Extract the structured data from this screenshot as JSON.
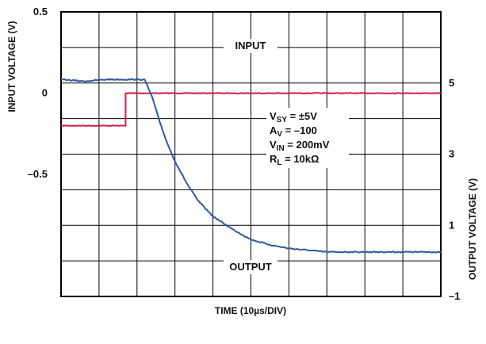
{
  "chart_data": {
    "type": "line",
    "xlabel": "TIME (10µs/DIV)",
    "ylabel_left": "INPUT VOLTAGE (V)",
    "ylabel_right": "OUTPUT VOLTAGE (V)",
    "x_divisions": 10,
    "grid": true,
    "ylim_left": [
      -1.25,
      0.5
    ],
    "ylim_right": [
      -1,
      7
    ],
    "yticks_left": [
      {
        "value": 0.5,
        "label": "0.5"
      },
      {
        "value": 0,
        "label": "0"
      },
      {
        "value": -0.5,
        "label": "–0.5"
      }
    ],
    "yticks_right": [
      {
        "value": 5,
        "label": "5"
      },
      {
        "value": 3,
        "label": "3"
      },
      {
        "value": 1,
        "label": "1"
      },
      {
        "value": -1,
        "label": "–1"
      }
    ],
    "series": [
      {
        "name": "INPUT",
        "color": "#d21f4a",
        "axis": "left",
        "x_div": [
          0,
          1.7,
          1.7,
          10
        ],
        "y": [
          -0.2,
          -0.2,
          0,
          0
        ]
      },
      {
        "name": "OUTPUT",
        "color": "#2f5a9c",
        "axis": "right",
        "x_div": [
          0,
          0.6,
          1.2,
          2.2,
          2.4,
          2.6,
          2.8,
          3.0,
          3.3,
          3.6,
          4.0,
          4.5,
          5.0,
          5.5,
          6.0,
          7.0,
          8.0,
          9.0,
          10.0
        ],
        "y": [
          5.1,
          5.05,
          5.1,
          5.1,
          4.6,
          3.9,
          3.3,
          2.8,
          2.2,
          1.7,
          1.25,
          0.9,
          0.6,
          0.45,
          0.35,
          0.25,
          0.25,
          0.25,
          0.25
        ]
      }
    ],
    "annotations": [
      {
        "main": "V",
        "sub": "SY",
        "tail": " = ±5V"
      },
      {
        "main": "A",
        "sub": "V",
        "tail": " = –100"
      },
      {
        "main": "V",
        "sub": "IN",
        "tail": " = 200mV"
      },
      {
        "main": "R",
        "sub": "L",
        "tail": " = 10kΩ"
      }
    ]
  }
}
